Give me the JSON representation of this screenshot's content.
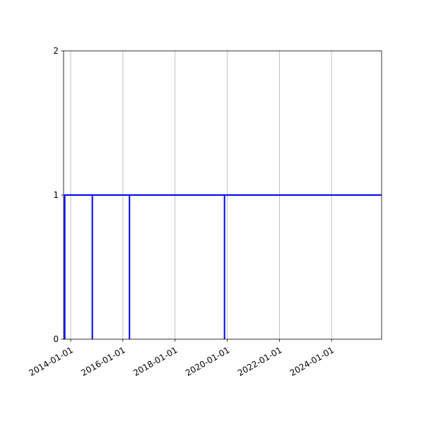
{
  "chart_data": {
    "type": "line",
    "title": "",
    "xlabel": "",
    "ylabel": "",
    "x_axis_type": "date",
    "xlim": [
      "2013-09-24",
      "2025-12-01"
    ],
    "ylim": [
      0,
      2
    ],
    "xticks": [
      "2014-01-01",
      "2016-01-01",
      "2018-01-01",
      "2020-01-01",
      "2022-01-01",
      "2024-01-01"
    ],
    "yticks": [
      0,
      1,
      2
    ],
    "grid": "x-only",
    "series": [
      {
        "color": "#0000ff",
        "x": [
          "2013-10-10",
          "2013-10-10",
          "2014-10-31",
          "2014-10-31",
          "2014-10-31",
          "2016-04-03",
          "2016-04-03",
          "2016-04-03",
          "2019-11-24",
          "2019-11-24",
          "2019-11-24",
          "2025-12-01"
        ],
        "y": [
          0,
          1,
          1,
          0,
          1,
          1,
          0,
          1,
          1,
          0,
          1,
          1
        ]
      }
    ]
  }
}
